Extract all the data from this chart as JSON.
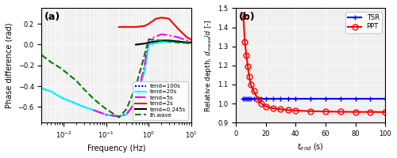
{
  "panel_a": {
    "title": "(a)",
    "xlabel": "Frequency (Hz)",
    "ylabel": "Phase difference (rad)",
    "xlim": [
      0.003,
      10
    ],
    "ylim": [
      -0.75,
      0.35
    ],
    "lines": [
      {
        "label": "tend=100s",
        "color": "blue",
        "linestyle": "dotted",
        "linewidth": 1.5,
        "freq": [
          0.003,
          0.005,
          0.008,
          0.01,
          0.02,
          0.03,
          0.05,
          0.08,
          0.1,
          0.2,
          0.3,
          0.5,
          0.8,
          1.0,
          2.0,
          3.0,
          5.0,
          8.0,
          10.0
        ],
        "phase": [
          -0.42,
          -0.45,
          -0.5,
          -0.52,
          -0.57,
          -0.6,
          -0.63,
          -0.66,
          -0.675,
          -0.69,
          -0.67,
          -0.55,
          -0.25,
          0.0,
          0.025,
          0.03,
          0.03,
          0.02,
          0.02
        ]
      },
      {
        "label": "tend=20s",
        "color": "cyan",
        "linestyle": "solid",
        "linewidth": 1.5,
        "freq": [
          0.003,
          0.005,
          0.008,
          0.01,
          0.02,
          0.03,
          0.05,
          0.08,
          0.1,
          0.2,
          0.3,
          0.5,
          0.8,
          1.0,
          2.0,
          3.0,
          5.0,
          8.0,
          10.0
        ],
        "phase": [
          -0.42,
          -0.45,
          -0.5,
          -0.52,
          -0.57,
          -0.6,
          -0.63,
          -0.66,
          -0.675,
          -0.69,
          -0.67,
          -0.55,
          -0.25,
          0.0,
          0.025,
          0.03,
          0.03,
          0.02,
          0.02
        ]
      },
      {
        "label": "tend=5s",
        "color": "magenta",
        "linestyle": "dashdot",
        "linewidth": 1.5,
        "freq": [
          0.05,
          0.08,
          0.1,
          0.2,
          0.3,
          0.5,
          0.8,
          1.0,
          2.0,
          3.0,
          5.0,
          8.0,
          10.0
        ],
        "phase": [
          -0.63,
          -0.66,
          -0.675,
          -0.69,
          -0.67,
          -0.55,
          -0.2,
          0.05,
          0.1,
          0.09,
          0.07,
          0.04,
          0.03
        ]
      },
      {
        "label": "tend=2s",
        "color": "red",
        "linestyle": "solid",
        "linewidth": 1.5,
        "freq": [
          0.2,
          0.3,
          0.5,
          0.8,
          1.0,
          1.5,
          2.0,
          3.0,
          5.0,
          8.0,
          10.0
        ],
        "phase": [
          0.17,
          0.17,
          0.17,
          0.18,
          0.2,
          0.25,
          0.26,
          0.25,
          0.15,
          0.07,
          0.05
        ]
      },
      {
        "label": "tend=0.245s",
        "color": "black",
        "linestyle": "solid",
        "linewidth": 1.5,
        "freq": [
          0.5,
          0.8,
          1.0,
          2.0,
          3.0,
          5.0,
          8.0,
          10.0
        ],
        "phase": [
          0.0,
          0.01,
          0.02,
          0.04,
          0.04,
          0.03,
          0.02,
          0.02
        ]
      },
      {
        "label": "th.wave",
        "color": "green",
        "linestyle": "dashed",
        "linewidth": 1.5,
        "freq": [
          0.003,
          0.005,
          0.008,
          0.01,
          0.02,
          0.03,
          0.05,
          0.08,
          0.1,
          0.2,
          0.3,
          0.5,
          0.8,
          1.0,
          2.0,
          3.0,
          5.0,
          8.0,
          10.0
        ],
        "phase": [
          -0.1,
          -0.17,
          -0.22,
          -0.25,
          -0.35,
          -0.43,
          -0.52,
          -0.59,
          -0.62,
          -0.7,
          -0.62,
          -0.4,
          -0.1,
          0.05,
          0.04,
          0.03,
          0.02,
          0.015,
          0.01
        ]
      }
    ]
  },
  "panel_b": {
    "title": "(b)",
    "xlabel": "t_end (s)",
    "ylabel": "Relative depth, d_meas/d [-]",
    "xlim": [
      0,
      100
    ],
    "ylim": [
      0.9,
      1.5
    ],
    "yticks": [
      0.9,
      1.0,
      1.1,
      1.2,
      1.3,
      1.4,
      1.5
    ],
    "xticks": [
      0,
      20,
      40,
      60,
      80,
      100
    ],
    "lines": [
      {
        "label": "TSR",
        "color": "blue",
        "marker": "+",
        "markersize": 5,
        "linestyle": "solid",
        "linewidth": 1.5,
        "x": [
          5,
          6,
          7,
          8,
          9,
          10,
          12,
          15,
          17,
          20,
          25,
          30,
          35,
          40,
          50,
          60,
          70,
          80,
          90,
          100
        ],
        "y": [
          1.025,
          1.025,
          1.025,
          1.025,
          1.025,
          1.025,
          1.025,
          1.025,
          1.025,
          1.025,
          1.025,
          1.025,
          1.025,
          1.025,
          1.025,
          1.025,
          1.025,
          1.025,
          1.025,
          1.025
        ]
      },
      {
        "label": "PPT",
        "color": "red",
        "marker": "o",
        "markersize": 5,
        "linestyle": "solid",
        "linewidth": 1.5,
        "x": [
          5,
          6,
          7,
          8,
          9,
          10,
          12,
          15,
          17,
          20,
          25,
          30,
          35,
          40,
          50,
          60,
          70,
          80,
          90,
          100
        ],
        "y": [
          1.46,
          1.325,
          1.255,
          1.195,
          1.14,
          1.1,
          1.065,
          1.02,
          1.0,
          0.985,
          0.975,
          0.97,
          0.966,
          0.963,
          0.96,
          0.958,
          0.957,
          0.956,
          0.956,
          0.955
        ]
      }
    ]
  },
  "background_color": "#f0f0f0"
}
